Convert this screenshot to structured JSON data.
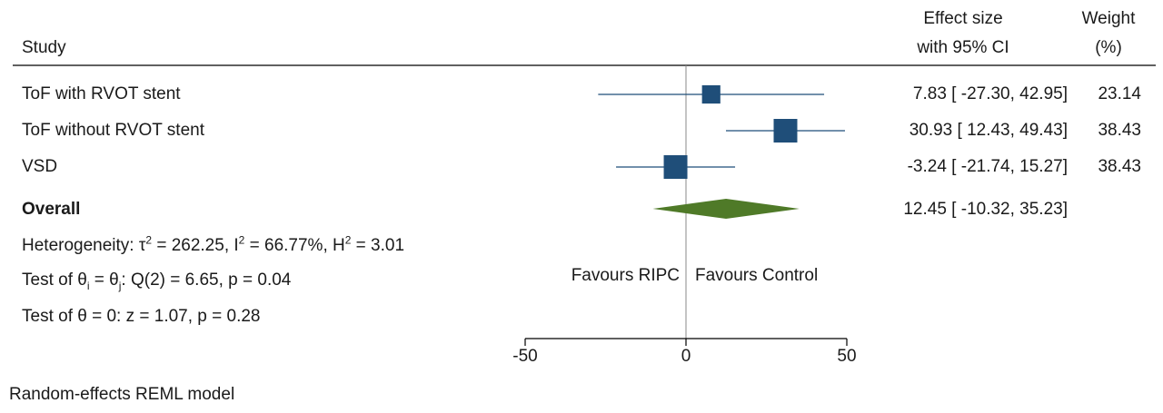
{
  "header": {
    "study_label": "Study",
    "effect_line1": "Effect size",
    "effect_line2": "with 95% CI",
    "weight_line1": "Weight",
    "weight_line2": "(%)"
  },
  "studies": [
    {
      "name": "ToF with RVOT stent",
      "ci_text": "7.83 [ -27.30,  42.95]",
      "weight_text": "23.14"
    },
    {
      "name": "ToF without RVOT stent",
      "ci_text": "30.93 [  12.43,  49.43]",
      "weight_text": "38.43"
    },
    {
      "name": "VSD",
      "ci_text": "-3.24 [ -21.74,  15.27]",
      "weight_text": "38.43"
    }
  ],
  "overall": {
    "label": "Overall",
    "ci_text": "12.45 [ -10.32,  35.23]"
  },
  "stats": {
    "het_prefix": "Heterogeneity: τ",
    "het_tau_sup": "2",
    "het_tau_val": " = 262.25, I",
    "het_i_sup": "2",
    "het_i_val": " = 66.77%, H",
    "het_h_sup": "2",
    "het_h_val": " = 3.01",
    "q_prefix": "Test of θ",
    "q_sub_i": "i",
    "q_mid": " = θ",
    "q_sub_j": "j",
    "q_rest": ": Q(2) = 6.65, p = 0.04",
    "z_test": "Test of θ = 0: z = 1.07, p = 0.28"
  },
  "favours": {
    "left": "Favours RIPC",
    "right": "Favours Control"
  },
  "footnote": "Random-effects REML model",
  "colors": {
    "study_marker": "#1f4e79",
    "ci_line": "#1f4e79",
    "overall_diamond": "#4f7a28",
    "axis": "#000000",
    "null_line": "#888888"
  },
  "chart_data": {
    "type": "forest",
    "x_ticks": [
      "-50",
      "0",
      "50"
    ],
    "xlim": [
      -50,
      50
    ],
    "null_value": 0,
    "studies": [
      {
        "name": "ToF with RVOT stent",
        "estimate": 7.83,
        "lower": -27.3,
        "upper": 42.95,
        "weight": 23.14
      },
      {
        "name": "ToF without RVOT stent",
        "estimate": 30.93,
        "lower": 12.43,
        "upper": 49.43,
        "weight": 38.43
      },
      {
        "name": "VSD",
        "estimate": -3.24,
        "lower": -21.74,
        "upper": 15.27,
        "weight": 38.43
      }
    ],
    "overall": {
      "name": "Overall",
      "estimate": 12.45,
      "lower": -10.32,
      "upper": 35.23
    }
  }
}
